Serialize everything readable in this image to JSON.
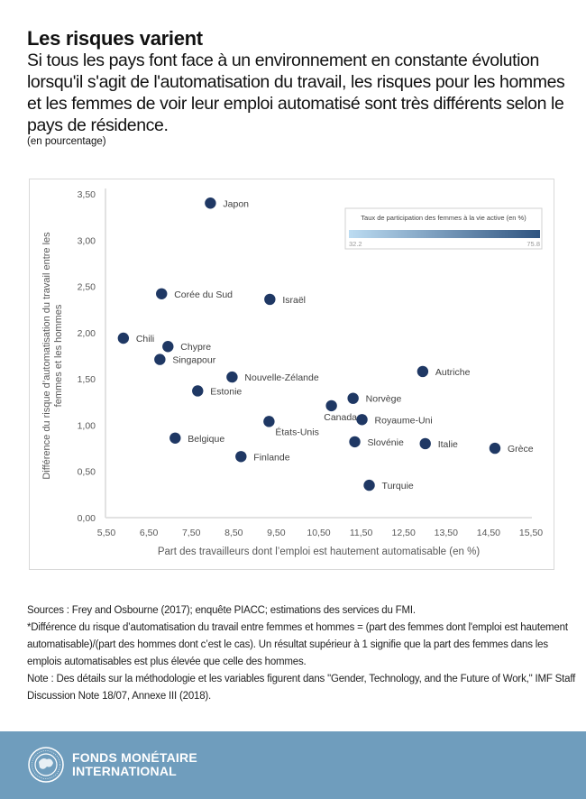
{
  "header": {
    "title": "Les risques varient",
    "subtitle": "Si tous les pays font face à un environnement en constante évolution lorsqu'il s'agit de l'automatisation du travail, les risques pour les hommes et les femmes de voir leur emploi automatisé sont très différents selon le pays de résidence.",
    "unit": "(en pourcentage)"
  },
  "chart_data": {
    "type": "scatter",
    "title": "",
    "xlabel": "Part des travailleurs dont l’emploi est hautement automatisable (en %)",
    "ylabel_lines": [
      "Différence du risque d’automatisation du travail entre les",
      "femmes et les hommes"
    ],
    "xlim": [
      5.5,
      15.5
    ],
    "ylim": [
      0,
      3.5
    ],
    "x_ticks": [
      5.5,
      6.5,
      7.5,
      8.5,
      9.5,
      10.5,
      11.5,
      12.5,
      13.5,
      14.5,
      15.5
    ],
    "x_tick_labels": [
      "5,50",
      "6,50",
      "7,50",
      "8,50",
      "9,50",
      "10,50",
      "11,50",
      "12,50",
      "13,50",
      "14,50",
      "15,50"
    ],
    "y_ticks": [
      0,
      0.5,
      1,
      1.5,
      2,
      2.5,
      3,
      3.5
    ],
    "y_tick_labels": [
      "0,00",
      "0,50",
      "1,00",
      "1,50",
      "2,00",
      "2,50",
      "3,00",
      "3,50"
    ],
    "grid": false,
    "marker_color": "#1f3864",
    "points": [
      {
        "label": "Japon",
        "x": 7.95,
        "y": 3.4,
        "label_pos": "right"
      },
      {
        "label": "Corée du Sud",
        "x": 6.8,
        "y": 2.42,
        "label_pos": "right"
      },
      {
        "label": "Israël",
        "x": 9.35,
        "y": 2.36,
        "label_pos": "right"
      },
      {
        "label": "Chili",
        "x": 5.9,
        "y": 1.94,
        "label_pos": "right"
      },
      {
        "label": "Chypre",
        "x": 6.95,
        "y": 1.85,
        "label_pos": "right"
      },
      {
        "label": "Singapour",
        "x": 6.76,
        "y": 1.71,
        "label_pos": "right"
      },
      {
        "label": "Nouvelle-Zélande",
        "x": 8.46,
        "y": 1.52,
        "label_pos": "right"
      },
      {
        "label": "Estonie",
        "x": 7.65,
        "y": 1.37,
        "label_pos": "right"
      },
      {
        "label": "Autriche",
        "x": 12.95,
        "y": 1.58,
        "label_pos": "right"
      },
      {
        "label": "Norvège",
        "x": 11.31,
        "y": 1.29,
        "label_pos": "right"
      },
      {
        "label": "Canada",
        "x": 10.8,
        "y": 1.21,
        "label_pos": "below"
      },
      {
        "label": "Royaume-Uni",
        "x": 11.52,
        "y": 1.06,
        "label_pos": "right"
      },
      {
        "label": "États-Unis",
        "x": 9.33,
        "y": 1.04,
        "label_pos": "below-right"
      },
      {
        "label": "Slovénie",
        "x": 11.35,
        "y": 0.82,
        "label_pos": "right"
      },
      {
        "label": "Italie",
        "x": 13.01,
        "y": 0.8,
        "label_pos": "right"
      },
      {
        "label": "Grèce",
        "x": 14.65,
        "y": 0.75,
        "label_pos": "right"
      },
      {
        "label": "Belgique",
        "x": 7.12,
        "y": 0.86,
        "label_pos": "right"
      },
      {
        "label": "Finlande",
        "x": 8.67,
        "y": 0.66,
        "label_pos": "right"
      },
      {
        "label": "Turquie",
        "x": 11.69,
        "y": 0.35,
        "label_pos": "right"
      }
    ],
    "legend": {
      "title": "Taux de participation des femmes à la vie active (en %)",
      "min_label": "32.2",
      "max_label": "75.8",
      "min": 32.2,
      "max": 75.8,
      "color_low": "#bcdcf2",
      "color_high": "#2f5480",
      "placement": "top-right"
    }
  },
  "notes": {
    "sources": "Sources : Frey and Osbourne (2017); enquête PIACC; estimations des services du FMI.",
    "definition": "*Différence du risque d’automatisation du travail entre femmes et hommes  = (part des femmes dont l'emploi est hautement automatisable)/(part des hommes dont c’est le cas). Un résultat supérieur à 1 signifie que la part des femmes dans les emplois automatisables est plus élevée que celle des hommes.",
    "note": "Note : Des détails sur la méthodologie et les variables figurent dans \"Gender, Technology, and the Future of Work,\" IMF Staff Discussion Note 18/07, Annexe III (2018)."
  },
  "footer": {
    "org_line1": "FONDS MONÉTAIRE",
    "org_line2": "INTERNATIONAL",
    "logo_icon": "imf-seal-icon",
    "background": "#6f9dbd"
  }
}
